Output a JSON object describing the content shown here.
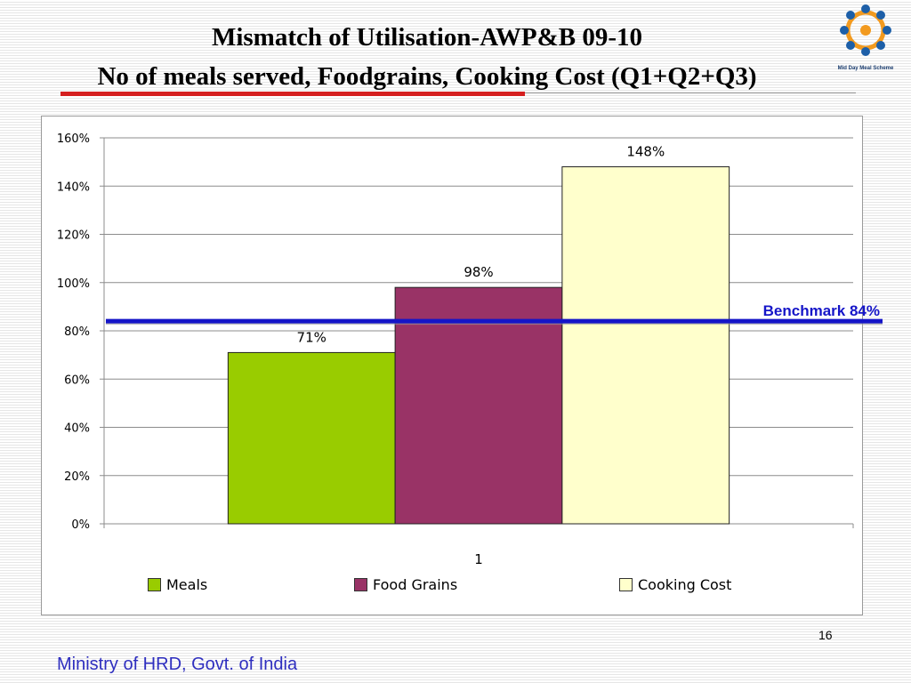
{
  "slide": {
    "title_line_1": "Mismatch of Utilisation-AWP&B 09-10",
    "title_line_2": "No of meals served, Foodgrains, Cooking Cost (Q1+Q2+Q3)",
    "page_number": "16",
    "footer": "Ministry of HRD, Govt. of India",
    "logo": {
      "icon": "mid-day-meal-logo",
      "text": "Mid Day Meal Scheme"
    }
  },
  "chart_data": {
    "type": "bar",
    "categories": [
      "1"
    ],
    "series": [
      {
        "name": "Meals",
        "values": [
          71
        ],
        "data_label": "71%",
        "color": "#99cc00"
      },
      {
        "name": "Food Grains",
        "values": [
          98
        ],
        "data_label": "98%",
        "color": "#993366"
      },
      {
        "name": "Cooking Cost",
        "values": [
          148
        ],
        "data_label": "148%",
        "color": "#ffffcc"
      }
    ],
    "ylim": [
      0,
      160
    ],
    "y_ticks": [
      0,
      20,
      40,
      60,
      80,
      100,
      120,
      140,
      160
    ],
    "y_tick_labels": [
      "0%",
      "20%",
      "40%",
      "60%",
      "80%",
      "100%",
      "120%",
      "140%",
      "160%"
    ],
    "grid": true,
    "legend_position": "bottom",
    "benchmark": {
      "value": 84,
      "label": "Benchmark 84%",
      "color": "#1515c8"
    }
  }
}
